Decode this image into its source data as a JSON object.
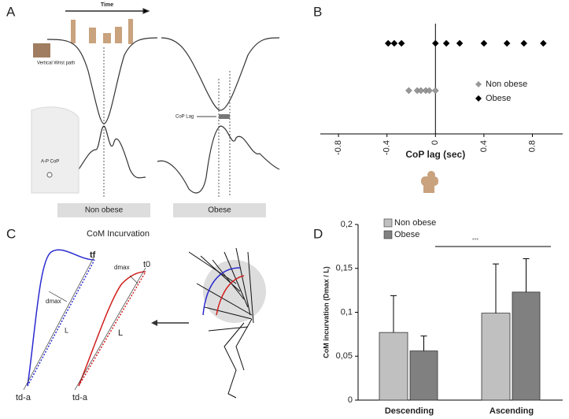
{
  "panel_labels": [
    "A",
    "B",
    "C",
    "D"
  ],
  "panel_a": {
    "time": "Time",
    "wrist": "Vertical Wrist path",
    "cop_lag": "CoP Lag",
    "ap_cop": "A-P CoP",
    "group_1": "Non obese",
    "group_2": "Obese"
  },
  "panel_c": {
    "title": "CoM Incurvation",
    "tf": "tf",
    "t0": "t0",
    "dmax_1": "dmax",
    "dmax_2": "dmax",
    "l_1": "L",
    "l_2": "L",
    "tda_1": "td-a",
    "tda_2": "td-a"
  },
  "chart_data": [
    {
      "type": "strip",
      "x_label": "CoP lag (sec)",
      "series": [
        {
          "name": "Non obese",
          "color": "#999999",
          "values": [
            -0.22,
            -0.15,
            -0.12,
            -0.08,
            -0.05,
            0.0
          ]
        },
        {
          "name": "Obese",
          "color": "#000000",
          "values": [
            -0.39,
            -0.34,
            -0.28,
            0.0,
            0.09,
            0.2,
            0.4,
            0.59,
            0.73,
            0.89
          ]
        }
      ],
      "xlim": [
        -0.95,
        1.05
      ],
      "xticks": [
        -0.8,
        -0.4,
        0,
        0.4,
        0.8
      ]
    },
    {
      "type": "bar",
      "y_label": "CoM incurvation (Dmax / L)",
      "annotation": "***",
      "categories": [
        "Descending",
        "Ascending"
      ],
      "series": [
        {
          "name": "Non obese",
          "color": "#c0c0c0",
          "values": [
            0.077,
            0.099
          ],
          "errors": [
            0.042,
            0.056
          ]
        },
        {
          "name": "Obese",
          "color": "#808080",
          "values": [
            0.056,
            0.123
          ],
          "errors": [
            0.017,
            0.038
          ]
        }
      ],
      "ylim": [
        0,
        0.2
      ],
      "yticks": [
        0,
        {
          "value": 0.05,
          "label": "0,05"
        },
        {
          "value": 0.1,
          "label": "0,1"
        },
        {
          "value": 0.15,
          "label": "0,15"
        },
        {
          "value": 0.2,
          "label": "0,2"
        }
      ]
    }
  ]
}
